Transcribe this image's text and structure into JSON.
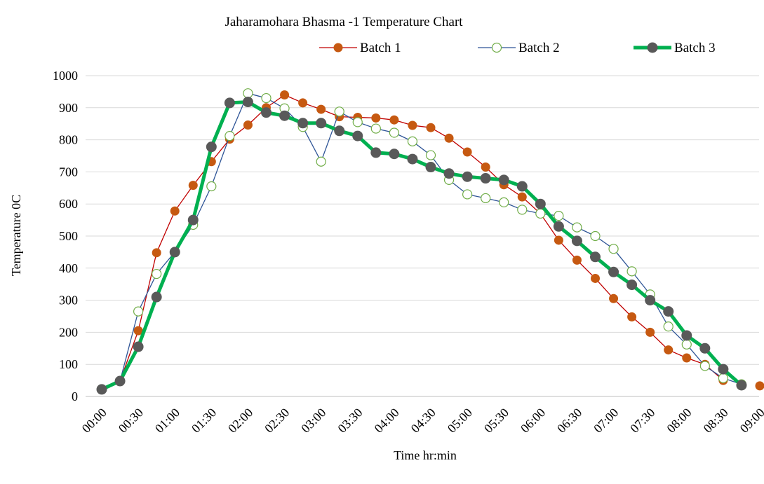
{
  "chart_data": {
    "type": "line",
    "title": "Jaharamohara Bhasma -1 Temperature Chart",
    "xlabel": "Time hr:min",
    "ylabel": "Temperature 0C",
    "ylim": [
      0,
      1000
    ],
    "yticks": [
      0,
      100,
      200,
      300,
      400,
      500,
      600,
      700,
      800,
      900,
      1000
    ],
    "x": [
      "00:00",
      "00:15",
      "00:30",
      "00:45",
      "01:00",
      "01:15",
      "01:30",
      "01:45",
      "02:00",
      "02:15",
      "02:30",
      "02:45",
      "03:00",
      "03:15",
      "03:30",
      "03:45",
      "04:00",
      "04:15",
      "04:30",
      "04:45",
      "05:00",
      "05:15",
      "05:30",
      "05:45",
      "06:00",
      "06:15",
      "06:30",
      "06:45",
      "07:00",
      "07:15",
      "07:30",
      "07:45",
      "08:00",
      "08:15",
      "08:30",
      "08:45",
      "09:00"
    ],
    "xtick_labels": [
      "00:00",
      "00:30",
      "01:00",
      "01:30",
      "02:00",
      "02:30",
      "03:00",
      "03:30",
      "04:00",
      "04:30",
      "05:00",
      "05:30",
      "06:00",
      "06:30",
      "07:00",
      "07:30",
      "08:00",
      "08:30",
      "09:00"
    ],
    "grid": true,
    "legend_position": "top",
    "series": [
      {
        "name": "Batch 1",
        "color": "#c00000",
        "marker_fill": "#c65911",
        "style": "thin-line-filled-marker",
        "values": [
          22,
          48,
          205,
          448,
          578,
          658,
          732,
          802,
          846,
          900,
          940,
          915,
          895,
          872,
          870,
          868,
          862,
          845,
          838,
          805,
          762,
          715,
          660,
          622,
          570,
          487,
          425,
          368,
          305,
          248,
          200,
          145,
          120,
          100,
          50,
          null,
          33
        ]
      },
      {
        "name": "Batch 2",
        "color": "#2f5597",
        "marker_fill": "none",
        "marker_stroke": "#70ad47",
        "style": "thin-line-hollow-marker",
        "values": [
          22,
          48,
          265,
          382,
          450,
          535,
          655,
          812,
          945,
          930,
          898,
          840,
          732,
          888,
          855,
          835,
          822,
          795,
          752,
          675,
          630,
          618,
          605,
          582,
          570,
          563,
          527,
          500,
          460,
          390,
          318,
          218,
          162,
          95,
          57,
          38,
          null
        ]
      },
      {
        "name": "Batch 3",
        "color": "#00b050",
        "marker_fill": "#595959",
        "style": "thick-line-filled-marker",
        "values": [
          22,
          48,
          155,
          310,
          450,
          550,
          778,
          915,
          918,
          885,
          875,
          852,
          852,
          828,
          812,
          760,
          756,
          740,
          715,
          695,
          685,
          680,
          675,
          655,
          600,
          530,
          485,
          435,
          388,
          348,
          300,
          265,
          190,
          150,
          85,
          35,
          null
        ]
      }
    ]
  }
}
